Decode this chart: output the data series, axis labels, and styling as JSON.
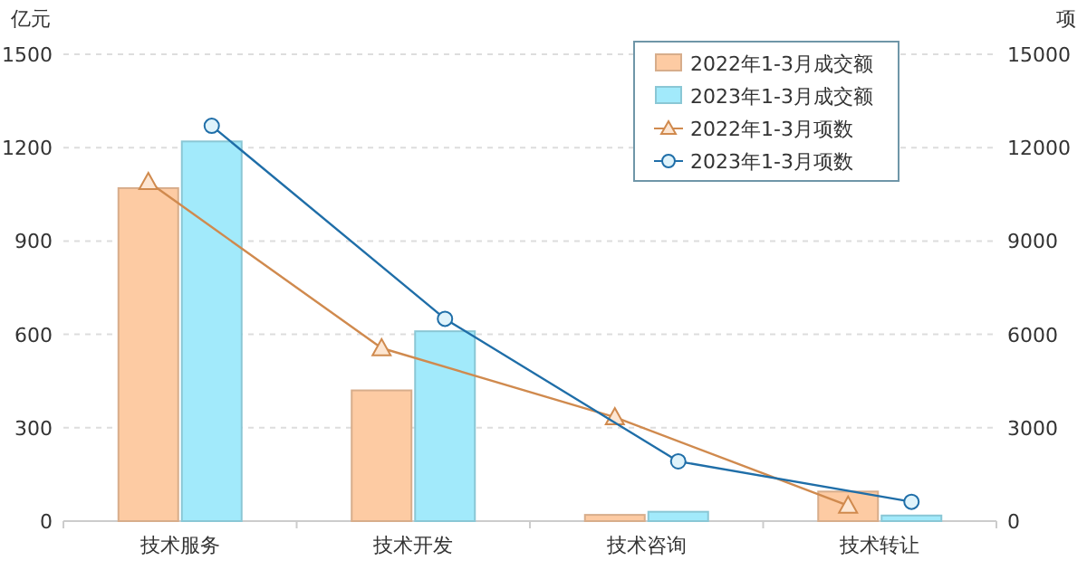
{
  "chart_data": {
    "type": "bar",
    "categories": [
      "技术服务",
      "技术开发",
      "技术咨询",
      "技术转让"
    ],
    "series": [
      {
        "name": "2022年1-3月成交额",
        "color": "#fdcba3",
        "values": [
          1070,
          420,
          20,
          95
        ]
      },
      {
        "name": "2023年1-3月成交额",
        "color": "#a2eafb",
        "values": [
          1220,
          610,
          30,
          18
        ]
      },
      {
        "name": "2022年1-3月项数",
        "type": "line",
        "axis": "y2",
        "color": "#d08a4e",
        "marker": "triangle",
        "values": [
          10900,
          5560,
          3340,
          500
        ]
      },
      {
        "name": "2023年1-3月项数",
        "type": "line",
        "axis": "y2",
        "color": "#1f6ea8",
        "marker": "circle",
        "values": [
          12700,
          6500,
          1920,
          620
        ]
      }
    ],
    "ylabel": "亿元",
    "y2label": "项",
    "ylim": [
      0,
      1500
    ],
    "yticks": [
      0,
      300,
      600,
      900,
      1200,
      1500
    ],
    "y2lim": [
      0,
      15000
    ],
    "y2ticks": [
      0,
      3000,
      6000,
      9000,
      12000,
      15000
    ],
    "grid": "y",
    "legend": "top right"
  }
}
